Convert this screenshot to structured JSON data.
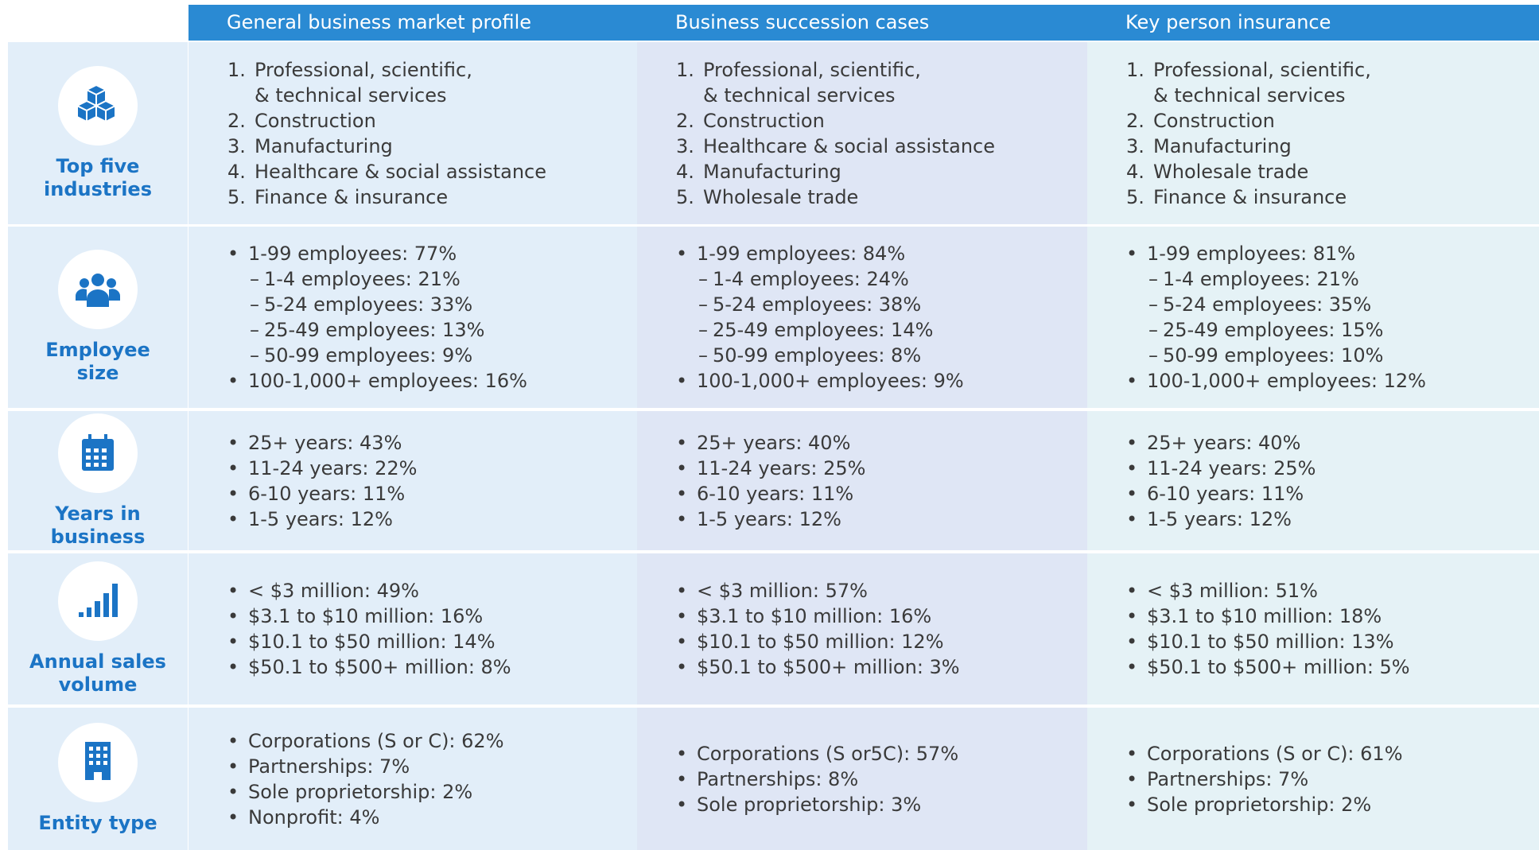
{
  "header": {
    "columns": [
      "General business market profile",
      "Business succession cases",
      "Key person insurance"
    ]
  },
  "rows": [
    {
      "label": [
        "Top five",
        "industries"
      ],
      "cells": [
        {
          "items": [
            {
              "marker": "1.",
              "text": [
                "Professional, scientific,",
                "& technical services"
              ]
            },
            {
              "marker": "2.",
              "text": "Construction"
            },
            {
              "marker": "3.",
              "text": "Manufacturing"
            },
            {
              "marker": "4.",
              "text": "Healthcare & social assistance"
            },
            {
              "marker": "5.",
              "text": "Finance & insurance"
            }
          ]
        },
        {
          "items": [
            {
              "marker": "1.",
              "text": [
                "Professional, scientific,",
                "& technical services"
              ]
            },
            {
              "marker": "2.",
              "text": "Construction"
            },
            {
              "marker": "3.",
              "text": "Healthcare & social assistance"
            },
            {
              "marker": "4.",
              "text": "Manufacturing"
            },
            {
              "marker": "5.",
              "text": "Wholesale trade"
            }
          ]
        },
        {
          "items": [
            {
              "marker": "1.",
              "text": [
                "Professional, scientific,",
                "& technical services"
              ]
            },
            {
              "marker": "2.",
              "text": "Construction"
            },
            {
              "marker": "3.",
              "text": "Manufacturing"
            },
            {
              "marker": "4.",
              "text": "Wholesale trade"
            },
            {
              "marker": "5.",
              "text": "Finance & insurance"
            }
          ]
        }
      ]
    },
    {
      "label": [
        "Employee",
        "size"
      ],
      "cells": [
        {
          "items": [
            {
              "marker": "•",
              "text": "1-99 employees: 77%",
              "sub": [
                {
                  "marker": "–",
                  "text": "1-4 employees: 21%"
                },
                {
                  "marker": "–",
                  "text": "5-24 employees: 33%"
                },
                {
                  "marker": "–",
                  "text": "25-49 employees: 13%"
                },
                {
                  "marker": "–",
                  "text": "50-99 employees: 9%"
                }
              ]
            },
            {
              "marker": "•",
              "text": "100-1,000+ employees: 16%"
            }
          ]
        },
        {
          "items": [
            {
              "marker": "•",
              "text": "1-99 employees: 84%",
              "sub": [
                {
                  "marker": "–",
                  "text": "1-4 employees: 24%"
                },
                {
                  "marker": "–",
                  "text": "5-24 employees: 38%"
                },
                {
                  "marker": "–",
                  "text": "25-49 employees: 14%"
                },
                {
                  "marker": "–",
                  "text": "50-99 employees: 8%"
                }
              ]
            },
            {
              "marker": "•",
              "text": "100-1,000+ employees: 9%"
            }
          ]
        },
        {
          "items": [
            {
              "marker": "•",
              "text": "1-99 employees: 81%",
              "sub": [
                {
                  "marker": "–",
                  "text": "1-4 employees: 21%"
                },
                {
                  "marker": "–",
                  "text": "5-24 employees: 35%"
                },
                {
                  "marker": "–",
                  "text": "25-49 employees: 15%"
                },
                {
                  "marker": "–",
                  "text": "50-99 employees: 10%"
                }
              ]
            },
            {
              "marker": "•",
              "text": "100-1,000+ employees: 12%"
            }
          ]
        }
      ]
    },
    {
      "label": [
        "Years in",
        "business"
      ],
      "cells": [
        {
          "items": [
            {
              "marker": "•",
              "text": "25+ years: 43%"
            },
            {
              "marker": "•",
              "text": "11-24 years: 22%"
            },
            {
              "marker": "•",
              "text": "6-10 years: 11%"
            },
            {
              "marker": "•",
              "text": "1-5 years: 12%"
            }
          ]
        },
        {
          "items": [
            {
              "marker": "•",
              "text": "25+ years: 40%"
            },
            {
              "marker": "•",
              "text": "11-24 years: 25%"
            },
            {
              "marker": "•",
              "text": "6-10 years: 11%"
            },
            {
              "marker": "•",
              "text": "1-5 years: 12%"
            }
          ]
        },
        {
          "items": [
            {
              "marker": "•",
              "text": "25+ years: 40%"
            },
            {
              "marker": "•",
              "text": "11-24 years: 25%"
            },
            {
              "marker": "•",
              "text": "6-10 years: 11%"
            },
            {
              "marker": "•",
              "text": "1-5 years: 12%"
            }
          ]
        }
      ]
    },
    {
      "label": [
        "Annual sales",
        "volume"
      ],
      "cells": [
        {
          "items": [
            {
              "marker": "•",
              "text": "< $3 million: 49%"
            },
            {
              "marker": "•",
              "text": "$3.1 to $10 million: 16%"
            },
            {
              "marker": "•",
              "text": "$10.1 to $50 million: 14%"
            },
            {
              "marker": "•",
              "text": "$50.1 to $500+ million: 8%"
            }
          ]
        },
        {
          "items": [
            {
              "marker": "•",
              "text": "< $3 million: 57%"
            },
            {
              "marker": "•",
              "text": "$3.1 to $10 million: 16%"
            },
            {
              "marker": "•",
              "text": "$10.1 to $50 million: 12%"
            },
            {
              "marker": "•",
              "text": "$50.1 to $500+ million: 3%"
            }
          ]
        },
        {
          "items": [
            {
              "marker": "•",
              "text": "< $3 million: 51%"
            },
            {
              "marker": "•",
              "text": "$3.1 to $10 million: 18%"
            },
            {
              "marker": "•",
              "text": "$10.1 to $50 million: 13%"
            },
            {
              "marker": "•",
              "text": "$50.1 to $500+ million: 5%"
            }
          ]
        }
      ]
    },
    {
      "label": [
        "Entity type"
      ],
      "cells": [
        {
          "items": [
            {
              "marker": "•",
              "text": "Corporations (S or C): 62%"
            },
            {
              "marker": "•",
              "text": "Partnerships: 7%"
            },
            {
              "marker": "•",
              "text": "Sole proprietorship: 2%"
            },
            {
              "marker": "•",
              "text": "Nonprofit: 4%"
            }
          ]
        },
        {
          "items": [
            {
              "marker": "•",
              "text": "Corporations (S or5C): 57%"
            },
            {
              "marker": "•",
              "text": "Partnerships: 8%"
            },
            {
              "marker": "•",
              "text": "Sole proprietorship: 3%"
            }
          ]
        },
        {
          "items": [
            {
              "marker": "•",
              "text": "Corporations (S or C): 61%"
            },
            {
              "marker": "•",
              "text": "Partnerships: 7%"
            },
            {
              "marker": "•",
              "text": "Sole proprietorship: 2%"
            }
          ]
        }
      ]
    }
  ]
}
